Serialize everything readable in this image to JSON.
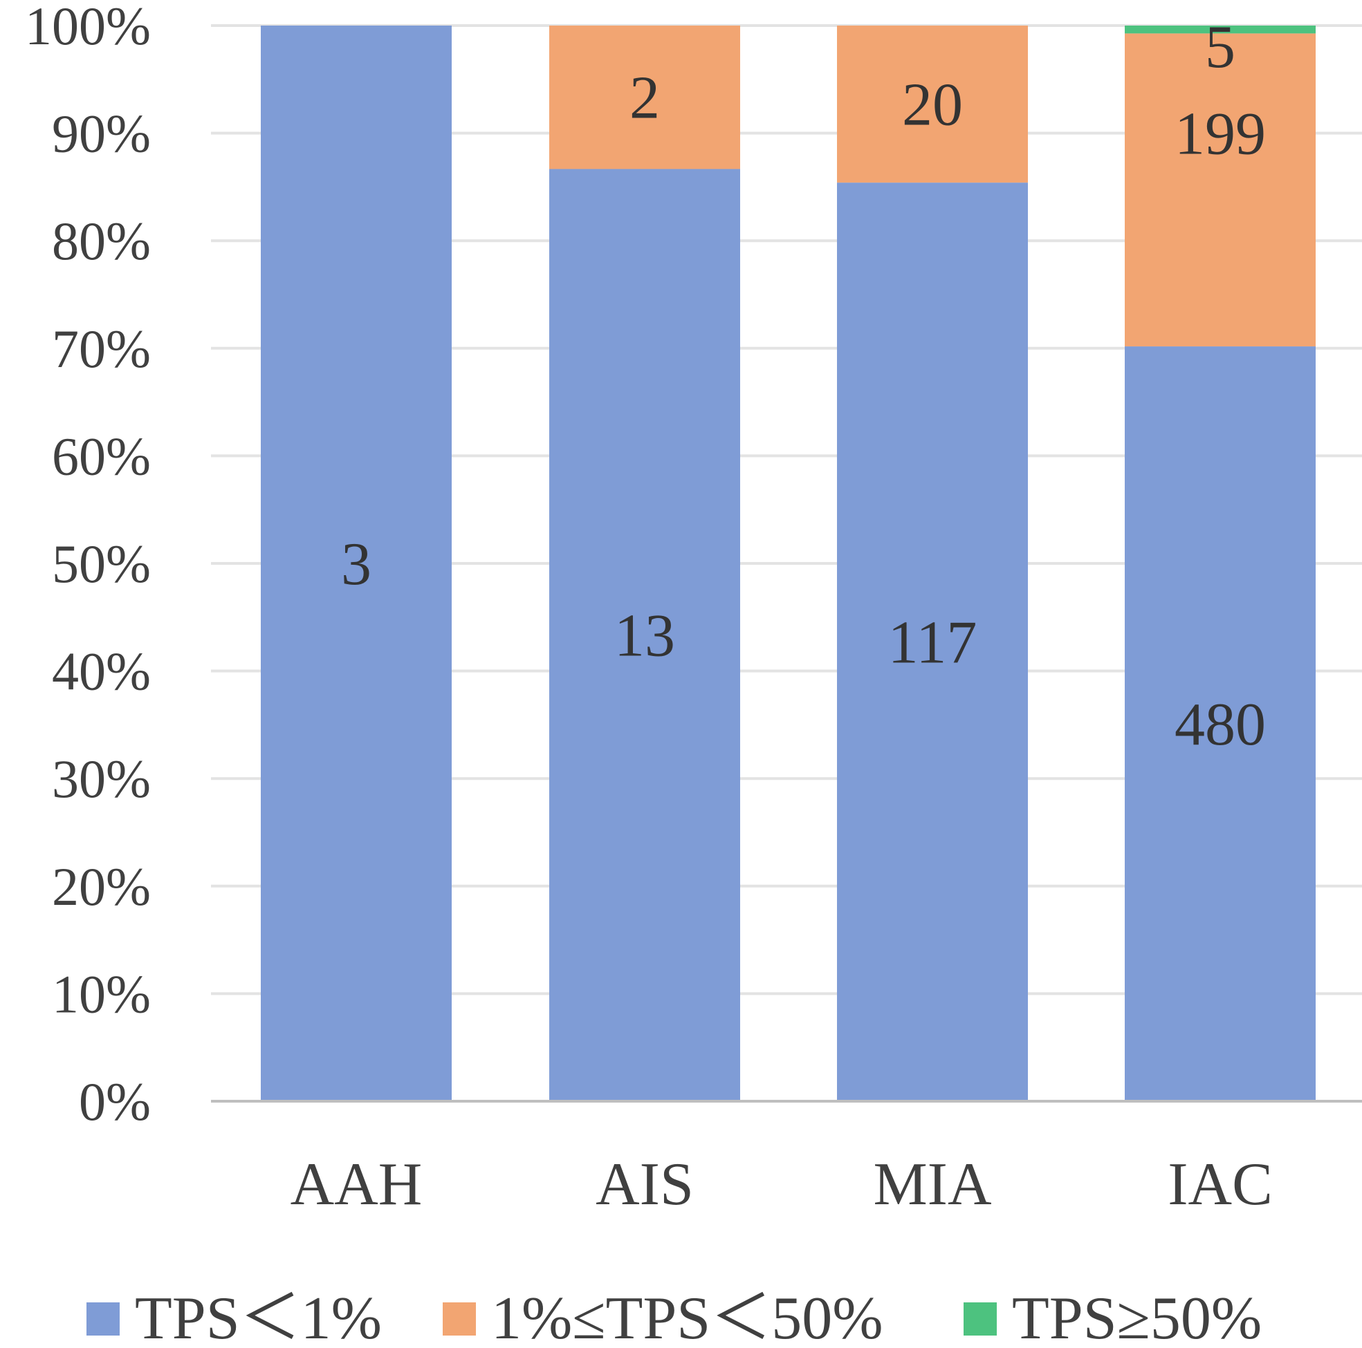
{
  "chart_data": {
    "type": "bar",
    "stacked": "percent",
    "categories": [
      "AAH",
      "AIS",
      "MIA",
      "IAC"
    ],
    "series": [
      {
        "name": "TPS＜1%",
        "color": "#7f9cd6",
        "values": [
          3,
          13,
          117,
          480
        ]
      },
      {
        "name": "1%≤TPS＜50%",
        "color": "#f2a572",
        "values": [
          0,
          2,
          20,
          199
        ]
      },
      {
        "name": "TPS≥50%",
        "color": "#4dc27f",
        "values": [
          0,
          0,
          0,
          5
        ]
      }
    ],
    "data_labels": [
      [
        "3",
        "13",
        "117",
        "480"
      ],
      [
        "",
        "2",
        "20",
        "199"
      ],
      [
        "",
        "",
        "",
        "5"
      ]
    ],
    "y_ticks": [
      "0%",
      "10%",
      "20%",
      "30%",
      "40%",
      "50%",
      "60%",
      "70%",
      "80%",
      "90%",
      "100%"
    ],
    "ylim": [
      0,
      100
    ],
    "grid": true,
    "legend_position": "bottom"
  }
}
